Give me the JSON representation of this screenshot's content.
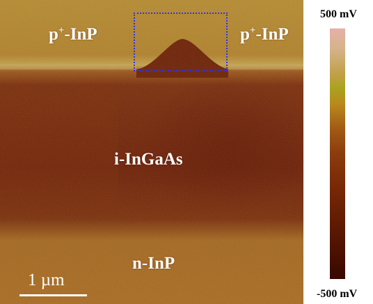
{
  "image": {
    "regions": {
      "p_inp_left": {
        "prefix": "p",
        "superscript": "+",
        "suffix": "-InP"
      },
      "p_inp_right": {
        "prefix": "p",
        "superscript": "+",
        "suffix": "-InP"
      },
      "ingaas": "i-InGaAs",
      "n_inp": "n-InP"
    },
    "scale_bar": {
      "label": "1 µm"
    },
    "roi_box_color": "#2f33ee"
  },
  "colorbar": {
    "max_label": "500 mV",
    "min_label": "-500 mV",
    "colors": [
      "#e6b0aa",
      "#c2a04a",
      "#aaa21e",
      "#a25a14",
      "#7a2a06",
      "#380800"
    ]
  }
}
